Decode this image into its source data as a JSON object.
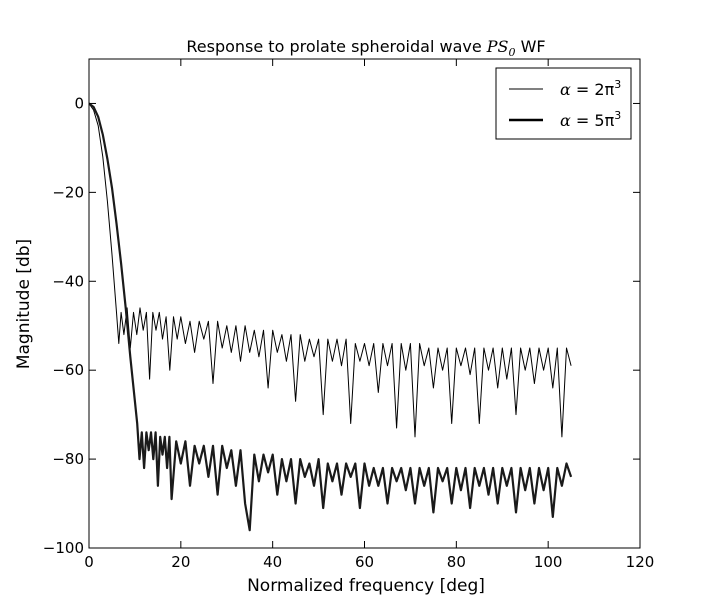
{
  "chart_data": {
    "type": "line",
    "title_prefix": "Response to prolate spheroidal wave ",
    "title_math": "PS",
    "title_math_sub": "0",
    "title_suffix": " WF",
    "xlabel": "Normalized frequency [deg]",
    "ylabel": "Magnitude [db]",
    "xlim": [
      0,
      120
    ],
    "ylim": [
      -100,
      10
    ],
    "xticks": [
      0,
      20,
      40,
      60,
      80,
      100,
      120
    ],
    "yticks": [
      0,
      -20,
      -40,
      -60,
      -80,
      -100
    ],
    "xtick_labels": [
      "0",
      "20",
      "40",
      "60",
      "80",
      "100",
      "120"
    ],
    "ytick_labels": [
      "0",
      "−20",
      "−40",
      "−60",
      "−80",
      "−100"
    ],
    "grid": false,
    "legend_position": "top-right",
    "series": [
      {
        "name_math": "α",
        "name_eq": " = 2π",
        "name_sup": "3",
        "color": "#000000",
        "line_style": "thin",
        "x": [
          0,
          1,
          2,
          3,
          4,
          5,
          6,
          6.5,
          7,
          7.6,
          8.3,
          9,
          9.7,
          10.4,
          11.1,
          11.8,
          12.5,
          13.2,
          13.9,
          14.6,
          15.3,
          16,
          16.8,
          17.6,
          18.4,
          19.2,
          20,
          21,
          22,
          23,
          24,
          25,
          26,
          27,
          28,
          29,
          30,
          31,
          32,
          33,
          34,
          35,
          36,
          37,
          38,
          39,
          40,
          41,
          42,
          43,
          44,
          45,
          46,
          47,
          48,
          49,
          50,
          51,
          52,
          53,
          54,
          55,
          56,
          57,
          58,
          59,
          60,
          61,
          62,
          63,
          64,
          65,
          66,
          67,
          68,
          69,
          70,
          71,
          72,
          73,
          74,
          75,
          76,
          77,
          78,
          79,
          80,
          81,
          82,
          83,
          84,
          85,
          86,
          87,
          88,
          89,
          90,
          91,
          92,
          93,
          94,
          95,
          96,
          97,
          98,
          99,
          100,
          101,
          102,
          103,
          104,
          105
        ],
        "y": [
          0,
          -1.5,
          -5,
          -12,
          -22,
          -34,
          -47,
          -54,
          -47,
          -52,
          -46,
          -55,
          -47,
          -52,
          -46,
          -51,
          -47,
          -62,
          -47,
          -51,
          -47,
          -53,
          -48,
          -60,
          -48,
          -53,
          -48,
          -54,
          -49,
          -56,
          -49,
          -53,
          -49,
          -63,
          -49,
          -55,
          -50,
          -56,
          -50,
          -58,
          -50,
          -56,
          -51,
          -57,
          -51,
          -64,
          -51,
          -56,
          -52,
          -58,
          -52,
          -67,
          -52,
          -58,
          -53,
          -57,
          -53,
          -70,
          -53,
          -58,
          -53,
          -59,
          -53,
          -72,
          -54,
          -58,
          -54,
          -59,
          -54,
          -65,
          -54,
          -59,
          -54,
          -73,
          -54,
          -60,
          -54,
          -75,
          -54,
          -59,
          -55,
          -64,
          -55,
          -60,
          -55,
          -72,
          -55,
          -59,
          -55,
          -61,
          -55,
          -72,
          -55,
          -60,
          -55,
          -64,
          -55,
          -62,
          -55,
          -70,
          -55,
          -60,
          -55,
          -63,
          -55,
          -60,
          -55,
          -64,
          -55,
          -75,
          -55,
          -59
        ]
      },
      {
        "name_math": "α",
        "name_eq": " = 5π",
        "name_sup": "3",
        "color": "#1a1a1a",
        "line_style": "thick",
        "x": [
          0,
          1,
          2,
          3,
          4,
          5,
          6,
          7,
          8,
          9,
          10,
          10.5,
          11,
          11.5,
          12,
          12.5,
          13,
          13.5,
          14,
          14.5,
          15,
          15.5,
          16,
          16.5,
          17,
          17.5,
          18,
          19,
          20,
          21,
          22,
          23,
          24,
          25,
          26,
          27,
          28,
          29,
          30,
          31,
          32,
          33,
          34,
          35,
          36,
          37,
          38,
          39,
          40,
          41,
          42,
          43,
          44,
          45,
          46,
          47,
          48,
          49,
          50,
          51,
          52,
          53,
          54,
          55,
          56,
          57,
          58,
          59,
          60,
          61,
          62,
          63,
          64,
          65,
          66,
          67,
          68,
          69,
          70,
          71,
          72,
          73,
          74,
          75,
          76,
          77,
          78,
          79,
          80,
          81,
          82,
          83,
          84,
          85,
          86,
          87,
          88,
          89,
          90,
          91,
          92,
          93,
          94,
          95,
          96,
          97,
          98,
          99,
          100,
          101,
          102,
          103,
          104,
          105
        ],
        "y": [
          0,
          -0.8,
          -3,
          -7,
          -12.5,
          -19,
          -27,
          -36,
          -46,
          -57,
          -67,
          -72,
          -80,
          -74,
          -82,
          -74,
          -78,
          -74,
          -80,
          -74,
          -86,
          -75,
          -79,
          -75,
          -82,
          -75,
          -89,
          -76,
          -81,
          -76,
          -86,
          -77,
          -81,
          -77,
          -84,
          -77,
          -88,
          -77,
          -82,
          -78,
          -86,
          -78,
          -90,
          -96,
          -79,
          -85,
          -79,
          -83,
          -79,
          -88,
          -80,
          -85,
          -80,
          -90,
          -80,
          -84,
          -81,
          -86,
          -80,
          -91,
          -81,
          -85,
          -81,
          -88,
          -81,
          -84,
          -81,
          -91,
          -81,
          -86,
          -82,
          -86,
          -82,
          -90,
          -82,
          -85,
          -82,
          -87,
          -82,
          -90,
          -82,
          -86,
          -82,
          -92,
          -82,
          -85,
          -82,
          -90,
          -82,
          -87,
          -82,
          -91,
          -82,
          -86,
          -82,
          -88,
          -82,
          -90,
          -82,
          -86,
          -82,
          -92,
          -82,
          -87,
          -82,
          -90,
          -82,
          -87,
          -82,
          -93,
          -82,
          -86,
          -81,
          -84
        ]
      }
    ]
  }
}
